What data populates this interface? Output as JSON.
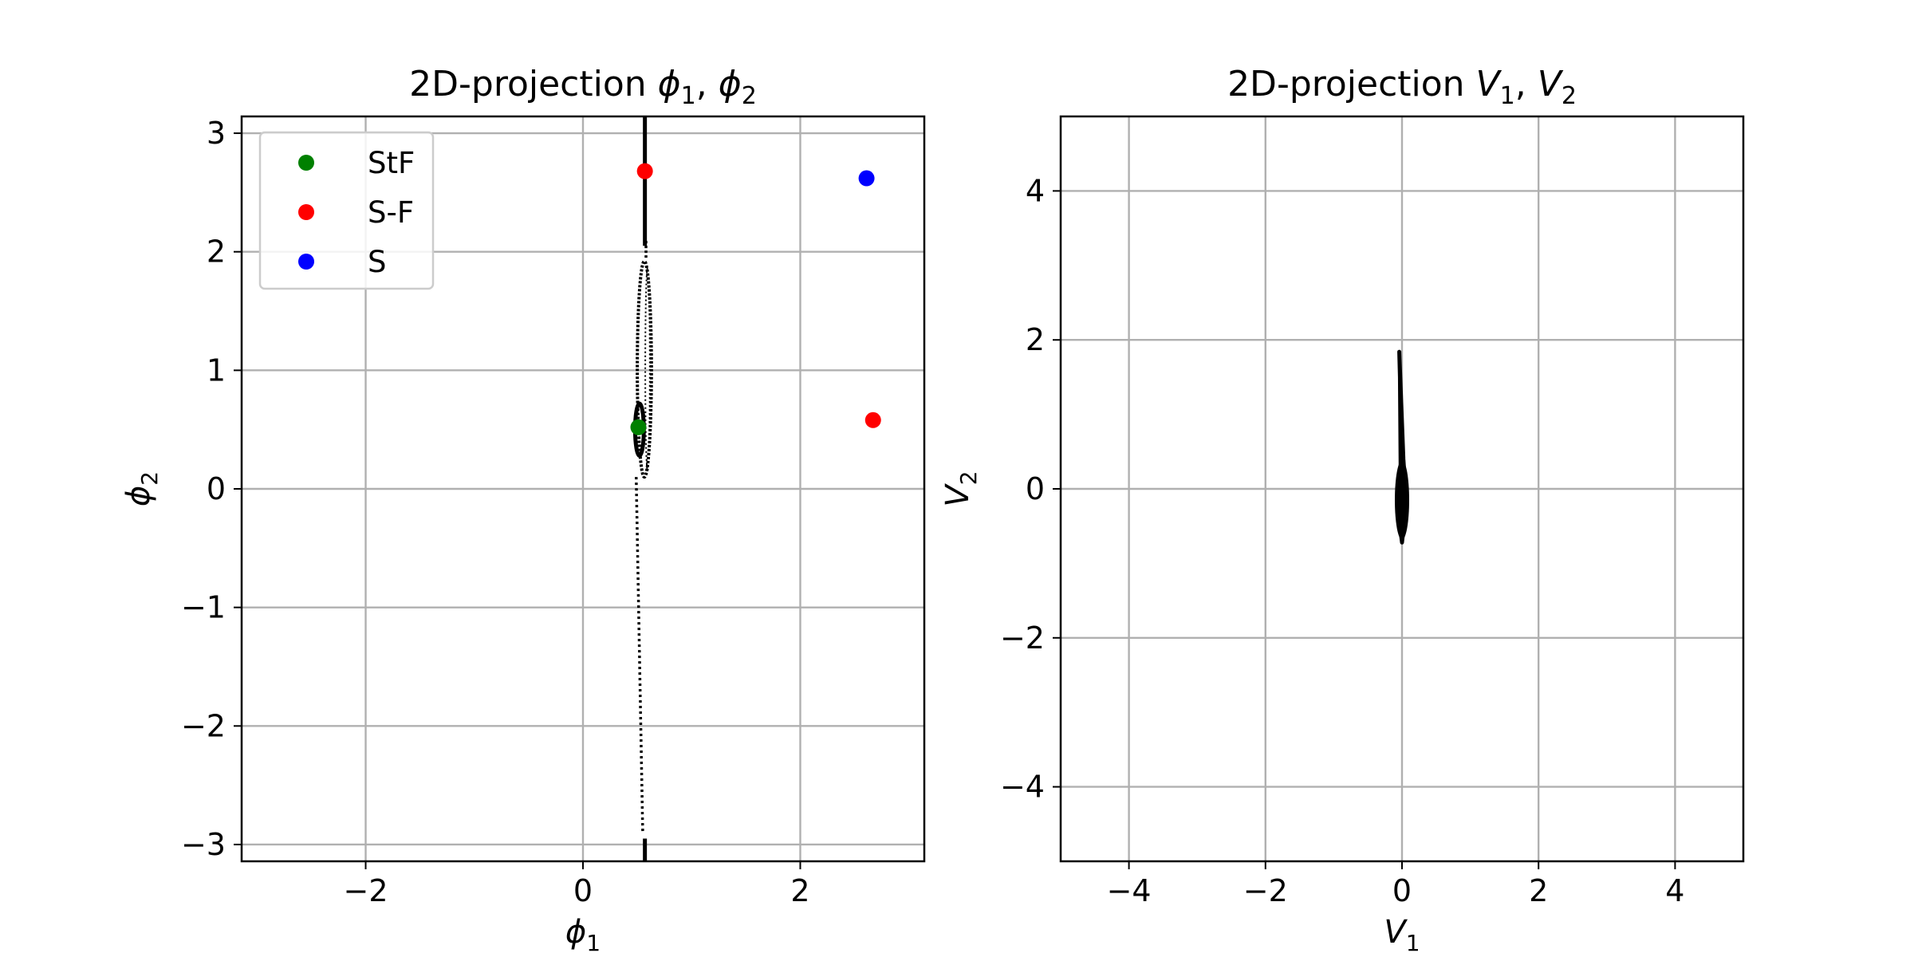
{
  "chart_data": [
    {
      "type": "scatter",
      "title": "2D-projection ϕ₁, ϕ₂",
      "xlabel": "ϕ₁",
      "ylabel": "ϕ₂",
      "xlim": [
        -3.1416,
        3.1416
      ],
      "ylim": [
        -3.1416,
        3.1416
      ],
      "xticks": [
        -2,
        0,
        2
      ],
      "yticks": [
        -3,
        -2,
        -1,
        0,
        1,
        2,
        3
      ],
      "xtick_labels": [
        "−2",
        "0",
        "2"
      ],
      "ytick_labels": [
        "−3",
        "−2",
        "−1",
        "0",
        "1",
        "2",
        "3"
      ],
      "grid": true,
      "legend": {
        "placement": "upper-left",
        "entries": [
          {
            "label": "StF",
            "color": "#008000"
          },
          {
            "label": "S-F",
            "color": "#ff0000"
          },
          {
            "label": "S",
            "color": "#0000ff"
          }
        ]
      },
      "points": [
        {
          "series": "StF",
          "x": 0.51,
          "y": 0.52,
          "color": "#008000"
        },
        {
          "series": "S-F",
          "x": 0.57,
          "y": 2.68,
          "color": "#ff0000"
        },
        {
          "series": "S-F",
          "x": 2.67,
          "y": 0.58,
          "color": "#ff0000"
        },
        {
          "series": "S",
          "x": 2.61,
          "y": 2.62,
          "color": "#0000ff"
        }
      ],
      "trajectory": {
        "color": "#000000",
        "vertical_band_x": 0.57,
        "outer_loop": {
          "x_range": [
            0.5,
            0.63
          ],
          "y_range": [
            0.1,
            1.92
          ]
        },
        "inner_loop": {
          "x_range": [
            0.48,
            0.56
          ],
          "y_range": [
            0.28,
            0.72
          ]
        },
        "stray_trace": {
          "from": [
            0.49,
            0.1
          ],
          "to": [
            0.55,
            -2.9
          ]
        }
      }
    },
    {
      "type": "line",
      "title": "2D-projection V₁, V₂",
      "xlabel": "V₁",
      "ylabel": "V₂",
      "xlim": [
        -5,
        5
      ],
      "ylim": [
        -5,
        5
      ],
      "xticks": [
        -4,
        -2,
        0,
        2,
        4
      ],
      "yticks": [
        -4,
        -2,
        0,
        2,
        4
      ],
      "xtick_labels": [
        "−4",
        "−2",
        "0",
        "2",
        "4"
      ],
      "ytick_labels": [
        "−4",
        "−2",
        "0",
        "2",
        "4"
      ],
      "grid": true,
      "trajectory": {
        "color": "#000000",
        "path": [
          [
            -0.04,
            1.84
          ],
          [
            0.02,
            0.4
          ],
          [
            0.05,
            0.0
          ],
          [
            0.02,
            -0.55
          ],
          [
            0.0,
            -0.72
          ],
          [
            -0.03,
            -0.5
          ],
          [
            -0.05,
            0.0
          ],
          [
            -0.02,
            0.3
          ],
          [
            -0.03,
            1.5
          ],
          [
            -0.04,
            1.84
          ]
        ]
      }
    }
  ]
}
